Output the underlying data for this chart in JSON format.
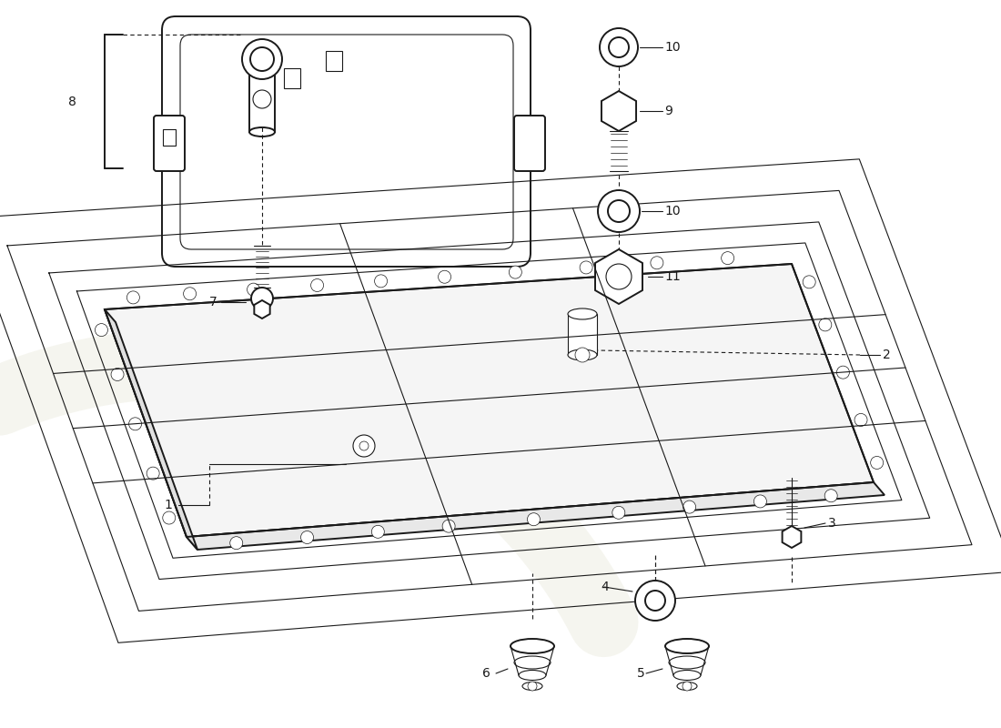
{
  "bg": "#ffffff",
  "lc": "#1a1a1a",
  "fig_w": 11.0,
  "fig_h": 8.0,
  "dpi": 100
}
